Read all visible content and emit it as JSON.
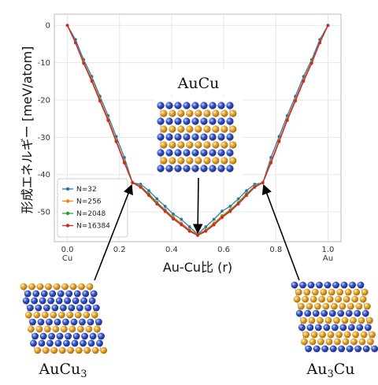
{
  "chart_data": {
    "type": "line",
    "xlabel": "Au-Cu比 (r)",
    "ylabel": "形成エネルギー [meV/atom]",
    "xlim": [
      -0.05,
      1.05
    ],
    "ylim": [
      -58,
      3
    ],
    "x_ticks": [
      {
        "v": 0.0,
        "label": "0.0"
      },
      {
        "v": 0.2,
        "label": "0.2"
      },
      {
        "v": 0.4,
        "label": "0.4"
      },
      {
        "v": 0.6,
        "label": "0.6"
      },
      {
        "v": 0.8,
        "label": "0.8"
      },
      {
        "v": 1.0,
        "label": "1.0"
      }
    ],
    "x_end_labels": [
      {
        "v": 0.0,
        "label": "Cu"
      },
      {
        "v": 1.0,
        "label": "Au"
      }
    ],
    "y_ticks": [
      0,
      -10,
      -20,
      -30,
      -40,
      -50
    ],
    "grid": true,
    "legend_position": "lower-left",
    "x": [
      0.0,
      0.03125,
      0.0625,
      0.09375,
      0.125,
      0.15625,
      0.1875,
      0.21875,
      0.25,
      0.28125,
      0.3125,
      0.34375,
      0.375,
      0.40625,
      0.4375,
      0.46875,
      0.5,
      0.53125,
      0.5625,
      0.59375,
      0.625,
      0.65625,
      0.6875,
      0.71875,
      0.75,
      0.78125,
      0.8125,
      0.84375,
      0.875,
      0.90625,
      0.9375,
      0.96875,
      1.0
    ],
    "series": [
      {
        "name": "N=32",
        "color": "#1f77b4",
        "values": [
          0,
          -3.8,
          -9.2,
          -13.7,
          -19.0,
          -24.2,
          -29.8,
          -35.4,
          -42.2,
          -42.6,
          -44.3,
          -46.5,
          -48.5,
          -50.6,
          -52.0,
          -54.0,
          -56.0,
          -54.0,
          -52.0,
          -49.8,
          -48.5,
          -46.5,
          -44.3,
          -42.6,
          -42.2,
          -35.4,
          -29.8,
          -24.2,
          -19.0,
          -13.7,
          -9.2,
          -3.8,
          0
        ]
      },
      {
        "name": "N=256",
        "color": "#ff7f0e",
        "values": [
          0,
          -4.5,
          -9.8,
          -14.5,
          -19.8,
          -25.0,
          -30.8,
          -36.4,
          -42.1,
          -43.1,
          -45.1,
          -47.4,
          -49.4,
          -51.4,
          -53.0,
          -54.8,
          -56.1,
          -54.8,
          -53.0,
          -51.0,
          -49.4,
          -47.4,
          -45.1,
          -43.1,
          -42.1,
          -36.4,
          -30.8,
          -25.0,
          -19.8,
          -14.5,
          -9.8,
          -4.5,
          0
        ]
      },
      {
        "name": "N=2048",
        "color": "#2ca02c",
        "values": [
          0,
          -4.6,
          -10.0,
          -14.8,
          -20.1,
          -25.3,
          -31.0,
          -36.7,
          -42.1,
          -43.2,
          -45.3,
          -47.6,
          -49.6,
          -51.7,
          -53.3,
          -55.0,
          -56.2,
          -55.0,
          -53.3,
          -51.3,
          -49.6,
          -47.6,
          -45.3,
          -43.2,
          -42.1,
          -36.7,
          -31.0,
          -25.3,
          -20.1,
          -14.8,
          -10.0,
          -4.6,
          0
        ]
      },
      {
        "name": "N=16384",
        "color": "#d62728",
        "values": [
          0,
          -4.7,
          -10.2,
          -15.0,
          -20.3,
          -25.5,
          -31.2,
          -36.9,
          -42.2,
          -43.4,
          -45.6,
          -47.9,
          -49.9,
          -51.9,
          -53.5,
          -55.2,
          -56.3,
          -55.2,
          -53.5,
          -51.5,
          -49.9,
          -47.9,
          -45.6,
          -43.4,
          -42.2,
          -36.9,
          -31.2,
          -25.5,
          -20.3,
          -15.0,
          -10.2,
          -4.7,
          0
        ]
      }
    ],
    "annotations": [
      {
        "label": "AuCu",
        "points_to_x": 0.5
      },
      {
        "label_main": "AuCu",
        "label_sub": "3",
        "points_to_x": 0.25
      },
      {
        "label_main": "Au",
        "label_sub": "3",
        "label_tail": "Cu",
        "points_to_x": 0.75
      }
    ]
  },
  "colors": {
    "au_atom": "#e6a52a",
    "cu_atom": "#3553c4",
    "frame": "#999999",
    "plot_bg": "#ffffff",
    "grid": "#e6e6e6"
  }
}
